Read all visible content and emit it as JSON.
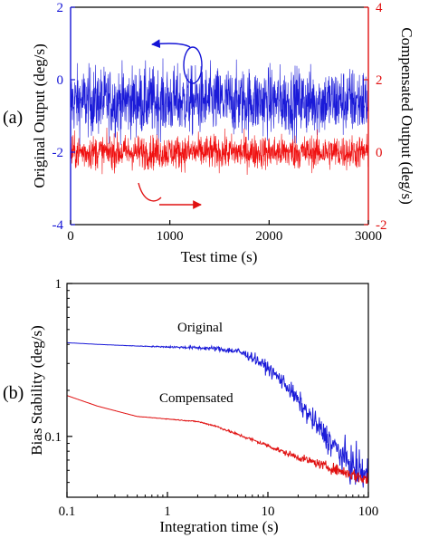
{
  "chart_data": [
    {
      "panel_label": "(a)",
      "type": "line",
      "xlabel": "Test time (s)",
      "xlim": [
        0,
        3000
      ],
      "x_ticks": [
        "0",
        "1000",
        "2000",
        "3000"
      ],
      "ylabel_left": "Original Output (deg/s)",
      "ylim_left": [
        -4,
        2
      ],
      "y_ticks_left": [
        "2",
        "0",
        "-2",
        "-4"
      ],
      "ylabel_right": "Compensated Output (deg/s)",
      "ylim_right": [
        -2,
        4
      ],
      "y_ticks_right": [
        "4",
        "2",
        "0",
        "-2"
      ],
      "colors": {
        "left_axis": "#1414d6",
        "right_axis": "#e01010"
      },
      "series": [
        {
          "color": "#1a1ad8",
          "axis": "left",
          "mean": -0.6,
          "amplitude": 1.1,
          "x_range": [
            0,
            3000
          ]
        },
        {
          "color": "#f01010",
          "axis": "right",
          "mean": 0.0,
          "amplitude": 0.55,
          "x_range": [
            0,
            3000
          ]
        }
      ]
    },
    {
      "panel_label": "(b)",
      "type": "line",
      "xlabel": "Integration time (s)",
      "xscale": "log",
      "xlim": [
        0.1,
        100
      ],
      "x_ticks": [
        "0.1",
        "1",
        "10",
        "100"
      ],
      "ylabel": "Bias Stability (deg/s)",
      "yscale": "log",
      "ylim": [
        0.04,
        1
      ],
      "y_ticks": [
        "1",
        "0.1"
      ],
      "series": [
        {
          "name": "Original",
          "color": "#1a1ad8",
          "x": [
            0.1,
            0.2,
            0.5,
            1,
            2,
            3,
            5,
            7,
            10,
            15,
            20,
            30,
            50,
            70,
            100
          ],
          "y": [
            0.41,
            0.4,
            0.39,
            0.385,
            0.38,
            0.375,
            0.36,
            0.33,
            0.28,
            0.22,
            0.17,
            0.12,
            0.08,
            0.063,
            0.055
          ]
        },
        {
          "name": "Compensated",
          "color": "#e01010",
          "x": [
            0.1,
            0.2,
            0.5,
            1,
            2,
            3,
            5,
            7,
            10,
            15,
            20,
            30,
            50,
            70,
            100
          ],
          "y": [
            0.185,
            0.158,
            0.135,
            0.13,
            0.125,
            0.117,
            0.103,
            0.095,
            0.087,
            0.078,
            0.073,
            0.067,
            0.06,
            0.056,
            0.052
          ]
        }
      ]
    }
  ]
}
